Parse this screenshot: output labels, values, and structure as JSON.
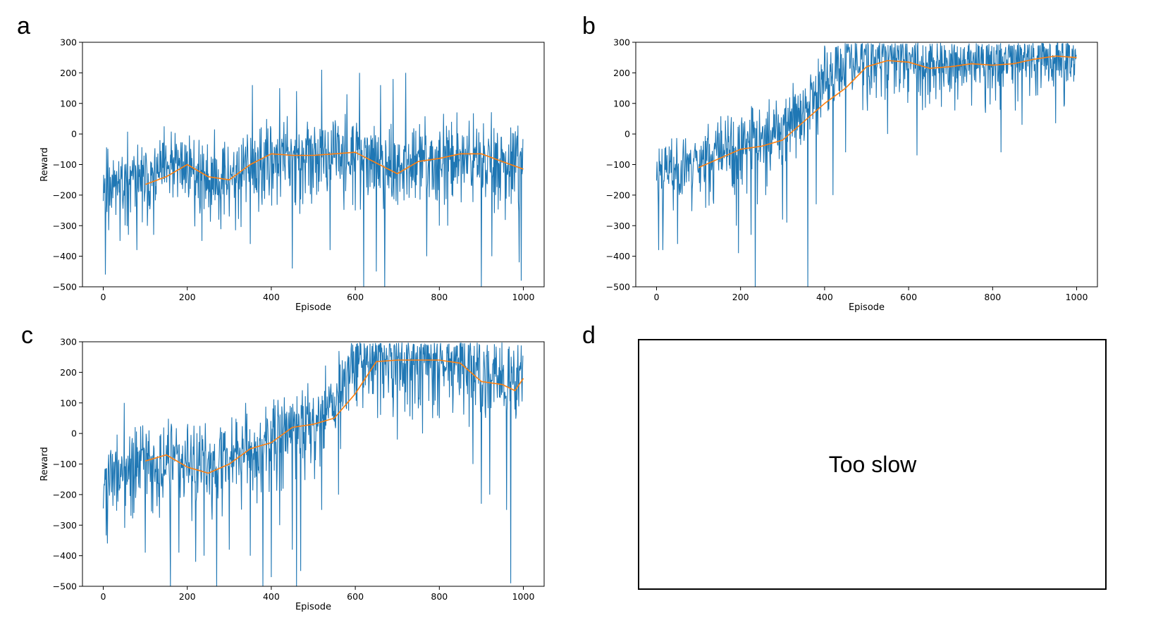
{
  "figure": {
    "colors": {
      "raw": "#1f77b4",
      "smoothed": "#ff7f0e",
      "axes": "#000000"
    },
    "panel_d": {
      "letter": "d",
      "note": "Too slow"
    }
  },
  "chart_data": [
    {
      "panel": "a",
      "type": "line",
      "xlabel": "Episode",
      "ylabel": "Reward",
      "xlim": [
        0,
        1000
      ],
      "ylim": [
        -500,
        300
      ],
      "xticks": [
        0,
        200,
        400,
        600,
        800,
        1000
      ],
      "yticks": [
        -500,
        -400,
        -300,
        -200,
        -100,
        0,
        100,
        200,
        300
      ],
      "grid": false,
      "episodes": 1000,
      "raw_series": {
        "name": "",
        "color": "#1f77b4",
        "trend": [
          [
            0,
            -150
          ],
          [
            100,
            -140
          ],
          [
            200,
            -100
          ],
          [
            250,
            -140
          ],
          [
            300,
            -140
          ],
          [
            350,
            -90
          ],
          [
            400,
            -70
          ],
          [
            500,
            -70
          ],
          [
            550,
            -70
          ],
          [
            600,
            -60
          ],
          [
            650,
            -90
          ],
          [
            700,
            -120
          ],
          [
            750,
            -90
          ],
          [
            800,
            -70
          ],
          [
            900,
            -70
          ],
          [
            1000,
            -110
          ]
        ],
        "spread": 55,
        "spikes": [
          [
            5,
            -460
          ],
          [
            40,
            -350
          ],
          [
            60,
            -330
          ],
          [
            80,
            -380
          ],
          [
            120,
            -330
          ],
          [
            230,
            -260
          ],
          [
            235,
            -350
          ],
          [
            290,
            -100
          ],
          [
            300,
            -270
          ],
          [
            350,
            -360
          ],
          [
            355,
            160
          ],
          [
            390,
            -150
          ],
          [
            420,
            150
          ],
          [
            450,
            -440
          ],
          [
            460,
            140
          ],
          [
            520,
            210
          ],
          [
            540,
            -380
          ],
          [
            580,
            130
          ],
          [
            600,
            -250
          ],
          [
            610,
            200
          ],
          [
            620,
            -500
          ],
          [
            630,
            -200
          ],
          [
            650,
            -450
          ],
          [
            660,
            160
          ],
          [
            670,
            -500
          ],
          [
            690,
            180
          ],
          [
            720,
            200
          ],
          [
            770,
            -400
          ],
          [
            800,
            -300
          ],
          [
            820,
            -300
          ],
          [
            830,
            -200
          ],
          [
            900,
            -500
          ],
          [
            925,
            -400
          ],
          [
            990,
            -420
          ],
          [
            995,
            -480
          ]
        ]
      },
      "smoothed_series": {
        "name": "",
        "color": "#ff7f0e",
        "x": [
          100,
          150,
          200,
          250,
          300,
          350,
          400,
          450,
          500,
          550,
          600,
          650,
          700,
          750,
          800,
          850,
          900,
          950,
          1000
        ],
        "y": [
          -165,
          -140,
          -100,
          -140,
          -150,
          -100,
          -65,
          -70,
          -70,
          -65,
          -60,
          -95,
          -130,
          -90,
          -80,
          -65,
          -65,
          -90,
          -115
        ]
      }
    },
    {
      "panel": "b",
      "type": "line",
      "xlabel": "Episode",
      "ylabel": "",
      "xlim": [
        0,
        1000
      ],
      "ylim": [
        -500,
        300
      ],
      "xticks": [
        0,
        200,
        400,
        600,
        800,
        1000
      ],
      "yticks": [
        -500,
        -400,
        -300,
        -200,
        -100,
        0,
        100,
        200,
        300
      ],
      "grid": false,
      "episodes": 1000,
      "raw_series": {
        "name": "",
        "color": "#1f77b4",
        "trend": [
          [
            0,
            -120
          ],
          [
            100,
            -80
          ],
          [
            200,
            -30
          ],
          [
            300,
            20
          ],
          [
            350,
            100
          ],
          [
            400,
            180
          ],
          [
            450,
            240
          ],
          [
            500,
            250
          ],
          [
            600,
            250
          ],
          [
            700,
            240
          ],
          [
            800,
            245
          ],
          [
            900,
            255
          ],
          [
            1000,
            260
          ]
        ],
        "spread": 50,
        "spikes": [
          [
            5,
            -380
          ],
          [
            15,
            -380
          ],
          [
            40,
            -250
          ],
          [
            50,
            -360
          ],
          [
            190,
            -300
          ],
          [
            195,
            -390
          ],
          [
            225,
            -330
          ],
          [
            235,
            -500
          ],
          [
            240,
            -230
          ],
          [
            260,
            -200
          ],
          [
            300,
            -280
          ],
          [
            310,
            -290
          ],
          [
            360,
            -500
          ],
          [
            380,
            -230
          ],
          [
            420,
            -200
          ],
          [
            450,
            -60
          ],
          [
            550,
            0
          ],
          [
            620,
            -70
          ],
          [
            820,
            -60
          ],
          [
            870,
            30
          ],
          [
            950,
            35
          ],
          [
            970,
            90
          ]
        ]
      },
      "smoothed_series": {
        "name": "",
        "color": "#ff7f0e",
        "x": [
          100,
          150,
          200,
          250,
          300,
          350,
          400,
          450,
          500,
          550,
          600,
          650,
          700,
          750,
          800,
          850,
          900,
          950,
          1000
        ],
        "y": [
          -110,
          -80,
          -50,
          -40,
          -20,
          40,
          100,
          150,
          220,
          240,
          235,
          215,
          220,
          230,
          225,
          230,
          245,
          255,
          250
        ]
      }
    },
    {
      "panel": "c",
      "type": "line",
      "xlabel": "Episode",
      "ylabel": "Reward",
      "xlim": [
        0,
        1000
      ],
      "ylim": [
        -500,
        300
      ],
      "xticks": [
        0,
        200,
        400,
        600,
        800,
        1000
      ],
      "yticks": [
        -500,
        -400,
        -300,
        -200,
        -100,
        0,
        100,
        200,
        300
      ],
      "grid": false,
      "episodes": 1000,
      "raw_series": {
        "name": "",
        "color": "#1f77b4",
        "trend": [
          [
            0,
            -150
          ],
          [
            100,
            -90
          ],
          [
            200,
            -100
          ],
          [
            250,
            -110
          ],
          [
            300,
            -60
          ],
          [
            400,
            -20
          ],
          [
            450,
            30
          ],
          [
            500,
            40
          ],
          [
            550,
            120
          ],
          [
            600,
            240
          ],
          [
            700,
            250
          ],
          [
            800,
            250
          ],
          [
            850,
            240
          ],
          [
            900,
            200
          ],
          [
            950,
            180
          ],
          [
            1000,
            210
          ]
        ],
        "spread": 60,
        "spikes": [
          [
            10,
            -360
          ],
          [
            50,
            100
          ],
          [
            100,
            -390
          ],
          [
            160,
            -500
          ],
          [
            180,
            -390
          ],
          [
            220,
            -420
          ],
          [
            240,
            -400
          ],
          [
            270,
            -500
          ],
          [
            300,
            -380
          ],
          [
            350,
            -400
          ],
          [
            380,
            -500
          ],
          [
            400,
            -470
          ],
          [
            420,
            -300
          ],
          [
            450,
            -380
          ],
          [
            460,
            -500
          ],
          [
            470,
            -450
          ],
          [
            520,
            -250
          ],
          [
            560,
            -200
          ],
          [
            620,
            150
          ],
          [
            700,
            -20
          ],
          [
            760,
            0
          ],
          [
            800,
            50
          ],
          [
            880,
            -100
          ],
          [
            900,
            -230
          ],
          [
            920,
            -200
          ],
          [
            960,
            -250
          ],
          [
            970,
            -490
          ]
        ]
      },
      "smoothed_series": {
        "name": "",
        "color": "#ff7f0e",
        "x": [
          100,
          150,
          200,
          250,
          300,
          350,
          400,
          450,
          500,
          550,
          600,
          650,
          700,
          750,
          800,
          850,
          900,
          950,
          980,
          1000
        ],
        "y": [
          -90,
          -70,
          -110,
          -130,
          -100,
          -50,
          -30,
          20,
          30,
          50,
          130,
          235,
          240,
          240,
          240,
          230,
          170,
          160,
          140,
          180
        ]
      }
    }
  ]
}
